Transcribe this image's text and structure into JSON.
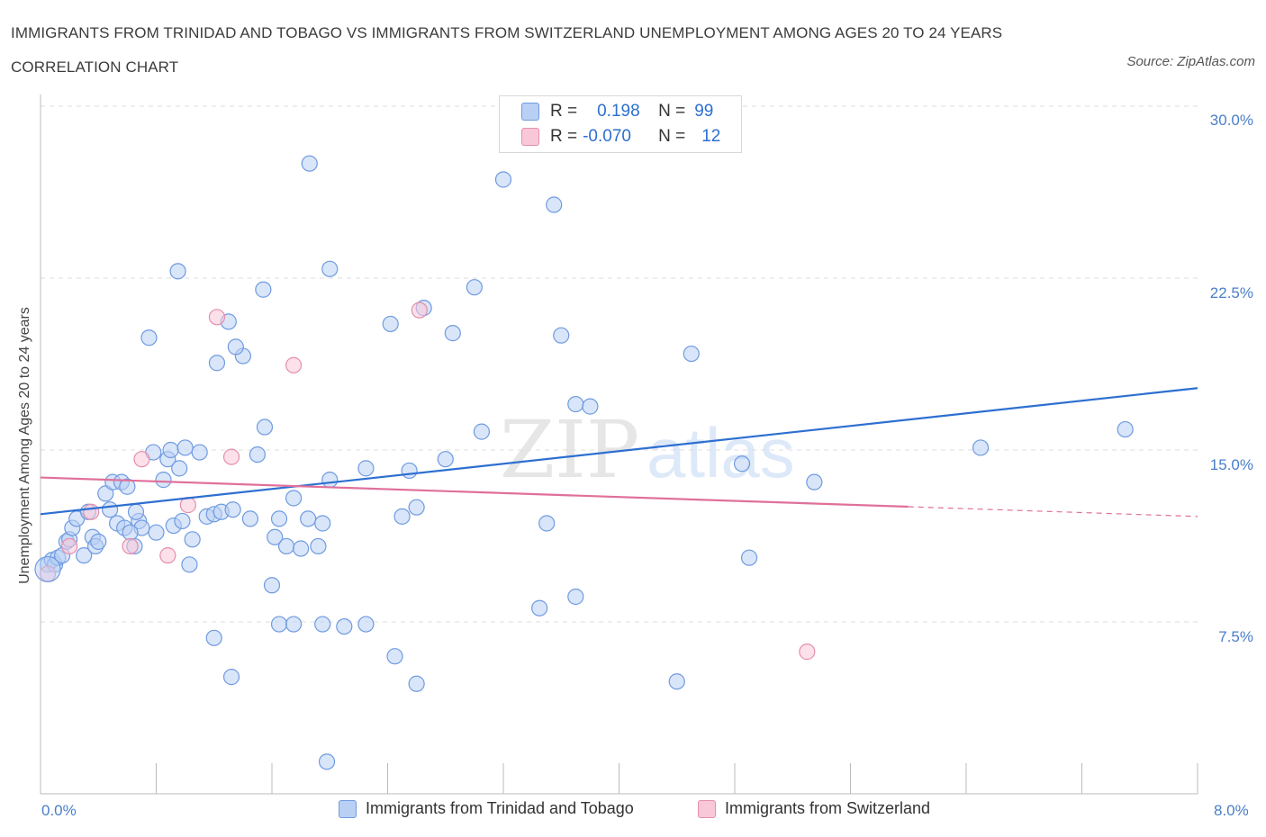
{
  "title": "IMMIGRANTS FROM TRINIDAD AND TOBAGO VS IMMIGRANTS FROM SWITZERLAND UNEMPLOYMENT AMONG AGES 20 TO 24 YEARS CORRELATION CHART",
  "source": "Source: ZipAtlas.com",
  "watermark": {
    "zip": "ZIP",
    "atlas": "atlas"
  },
  "colors": {
    "blue": "#6f9be0",
    "blue_fill": "#b9d0f4",
    "blue_line": "#2d6fd1",
    "pink": "#e58fab",
    "pink_fill": "#f9c8d8",
    "pink_line": "#e0709a"
  },
  "legend": {
    "r_label": "R =",
    "n_label": "N =",
    "series1_r": "0.198",
    "series1_n": "99",
    "series2_r": "-0.070",
    "series2_n": "12"
  },
  "chart_data": {
    "type": "scatter",
    "title": "IMMIGRANTS FROM TRINIDAD AND TOBAGO VS IMMIGRANTS FROM SWITZERLAND UNEMPLOYMENT AMONG AGES 20 TO 24 YEARS CORRELATION CHART",
    "xlabel": "",
    "ylabel": "Unemployment Among Ages 20 to 24 years",
    "xlim": [
      0,
      8
    ],
    "ylim": [
      0,
      30
    ],
    "x_tick_labels": [
      "0.0%",
      "8.0%"
    ],
    "y_ticks": [
      7.5,
      15.0,
      22.5,
      30.0
    ],
    "y_tick_labels": [
      "7.5%",
      "15.0%",
      "22.5%",
      "30.0%"
    ],
    "grid": true,
    "legend_position": "top-center",
    "series": [
      {
        "name": "Immigrants from Trinidad and Tobago",
        "color": "blue",
        "r": 0.198,
        "n": 99,
        "trend": {
          "x": [
            0.0,
            8.0
          ],
          "y": [
            12.2,
            17.7
          ],
          "dashed_from": null
        },
        "points": [
          [
            0.05,
            10.0
          ],
          [
            0.08,
            10.2
          ],
          [
            0.1,
            10.0
          ],
          [
            0.12,
            10.3
          ],
          [
            0.15,
            10.4
          ],
          [
            0.18,
            11.0
          ],
          [
            0.2,
            11.1
          ],
          [
            0.22,
            11.6
          ],
          [
            0.25,
            12.0
          ],
          [
            0.3,
            10.4
          ],
          [
            0.33,
            12.3
          ],
          [
            0.36,
            11.2
          ],
          [
            0.38,
            10.8
          ],
          [
            0.4,
            11.0
          ],
          [
            0.45,
            13.1
          ],
          [
            0.48,
            12.4
          ],
          [
            0.5,
            13.6
          ],
          [
            0.53,
            11.8
          ],
          [
            0.56,
            13.6
          ],
          [
            0.58,
            11.6
          ],
          [
            0.6,
            13.4
          ],
          [
            0.65,
            10.8
          ],
          [
            0.68,
            11.9
          ],
          [
            0.7,
            11.6
          ],
          [
            0.75,
            19.9
          ],
          [
            0.78,
            14.9
          ],
          [
            0.8,
            11.4
          ],
          [
            0.85,
            13.7
          ],
          [
            0.88,
            14.6
          ],
          [
            0.9,
            15.0
          ],
          [
            0.92,
            11.7
          ],
          [
            0.96,
            14.2
          ],
          [
            0.98,
            11.9
          ],
          [
            1.0,
            15.1
          ],
          [
            1.03,
            10.0
          ],
          [
            1.05,
            11.1
          ],
          [
            1.1,
            14.9
          ],
          [
            1.15,
            12.1
          ],
          [
            1.2,
            12.2
          ],
          [
            1.22,
            18.8
          ],
          [
            1.25,
            12.3
          ],
          [
            1.3,
            20.6
          ],
          [
            1.33,
            12.4
          ],
          [
            1.4,
            19.1
          ],
          [
            1.45,
            12.0
          ],
          [
            1.5,
            14.8
          ],
          [
            1.55,
            16.0
          ],
          [
            1.62,
            11.2
          ],
          [
            1.65,
            12.0
          ],
          [
            1.7,
            10.8
          ],
          [
            1.75,
            12.9
          ],
          [
            1.8,
            10.7
          ],
          [
            1.85,
            12.0
          ],
          [
            1.92,
            10.8
          ],
          [
            1.95,
            11.8
          ],
          [
            2.0,
            13.7
          ],
          [
            2.1,
            7.3
          ],
          [
            2.25,
            14.2
          ],
          [
            2.5,
            12.1
          ],
          [
            2.55,
            14.1
          ],
          [
            2.6,
            12.5
          ],
          [
            2.8,
            14.6
          ],
          [
            0.66,
            12.3
          ],
          [
            2.42,
            20.5
          ],
          [
            2.65,
            21.2
          ],
          [
            2.0,
            22.9
          ],
          [
            0.95,
            22.8
          ],
          [
            1.54,
            22.0
          ],
          [
            2.85,
            20.1
          ],
          [
            1.2,
            6.8
          ],
          [
            1.6,
            9.1
          ],
          [
            1.65,
            7.4
          ],
          [
            1.75,
            7.4
          ],
          [
            1.95,
            7.4
          ],
          [
            2.25,
            7.4
          ],
          [
            2.45,
            6.0
          ],
          [
            2.6,
            4.8
          ],
          [
            1.32,
            5.1
          ],
          [
            1.98,
            1.4
          ],
          [
            0.62,
            11.4
          ],
          [
            3.0,
            22.1
          ],
          [
            3.2,
            26.8
          ],
          [
            3.55,
            25.7
          ],
          [
            3.6,
            20.0
          ],
          [
            3.7,
            17.0
          ],
          [
            3.8,
            16.9
          ],
          [
            3.5,
            11.8
          ],
          [
            3.45,
            8.1
          ],
          [
            3.7,
            8.6
          ],
          [
            1.35,
            19.5
          ],
          [
            4.5,
            19.2
          ],
          [
            4.85,
            14.4
          ],
          [
            4.9,
            10.3
          ],
          [
            6.5,
            15.1
          ],
          [
            7.5,
            15.9
          ],
          [
            5.35,
            13.6
          ],
          [
            4.4,
            4.9
          ],
          [
            3.05,
            15.8
          ],
          [
            1.86,
            27.5
          ]
        ]
      },
      {
        "name": "Immigrants from Switzerland",
        "color": "pink",
        "r": -0.07,
        "n": 12,
        "trend": {
          "x": [
            0.0,
            8.0
          ],
          "y": [
            13.8,
            12.1
          ],
          "dashed_from": 6.0
        },
        "points": [
          [
            0.05,
            9.6
          ],
          [
            0.2,
            10.8
          ],
          [
            0.35,
            12.3
          ],
          [
            0.62,
            10.8
          ],
          [
            0.7,
            14.6
          ],
          [
            0.88,
            10.4
          ],
          [
            1.02,
            12.6
          ],
          [
            1.22,
            20.8
          ],
          [
            1.32,
            14.7
          ],
          [
            1.75,
            18.7
          ],
          [
            2.62,
            21.1
          ],
          [
            5.3,
            6.2
          ]
        ]
      }
    ]
  },
  "bottom_legend": {
    "series1": "Immigrants from Trinidad and Tobago",
    "series2": "Immigrants from Switzerland"
  }
}
